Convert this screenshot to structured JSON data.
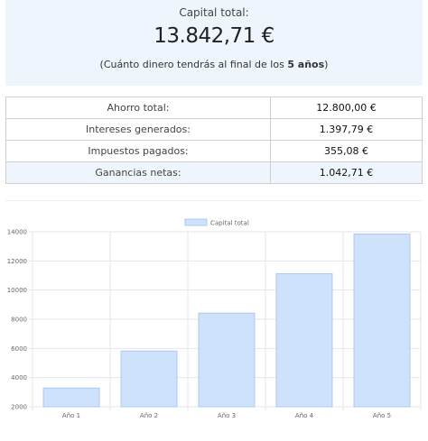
{
  "summary": {
    "label": "Capital total:",
    "amount": "13.842,71 €",
    "note_prefix": "(Cuánto dinero tendrás al final de los ",
    "note_bold": "5 años",
    "note_suffix": ")"
  },
  "results": [
    {
      "label": "Ahorro total:",
      "value": "12.800,00 €"
    },
    {
      "label": "Intereses generados:",
      "value": "1.397,79 €"
    },
    {
      "label": "Impuestos pagados:",
      "value": "355,08 €"
    },
    {
      "label": "Ganancias netas:",
      "value": "1.042,71 €"
    }
  ],
  "colors": {
    "accent_bg": "#eef5fd",
    "bar_fill": "#cfe2fb",
    "bar_stroke": "#a9c9f2"
  },
  "chart_data": {
    "type": "bar",
    "categories": [
      "Año 1",
      "Año 2",
      "Año 3",
      "Año 4",
      "Año 5"
    ],
    "series": [
      {
        "name": "Capital total",
        "values": [
          3280,
          5820,
          8420,
          11120,
          13842.71
        ]
      }
    ],
    "ylim": [
      2000,
      14000
    ],
    "yticks": [
      2000,
      4000,
      6000,
      8000,
      10000,
      12000,
      14000
    ],
    "legend": "top-center",
    "grid": true
  }
}
